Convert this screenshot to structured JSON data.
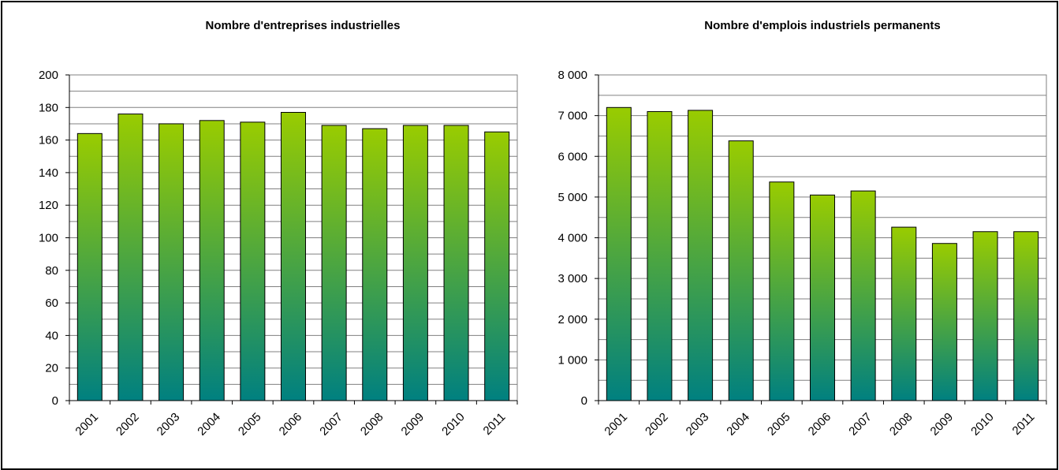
{
  "chart_data": [
    {
      "type": "bar",
      "title": "Nombre d'entreprises industrielles",
      "xlabel": "",
      "ylabel": "",
      "categories": [
        "2001",
        "2002",
        "2003",
        "2004",
        "2005",
        "2006",
        "2007",
        "2008",
        "2009",
        "2010",
        "2011"
      ],
      "values": [
        164,
        176,
        170,
        172,
        171,
        177,
        169,
        167,
        169,
        169,
        165
      ],
      "ylim": [
        0,
        200
      ],
      "yticks": [
        0,
        20,
        40,
        60,
        80,
        100,
        120,
        140,
        160,
        180,
        200
      ],
      "ytick_labels": [
        "0",
        "20",
        "40",
        "60",
        "80",
        "100",
        "120",
        "140",
        "160",
        "180",
        "200"
      ],
      "grid": true,
      "legend": "none",
      "colors": {
        "bar_top": "#99cc00",
        "bar_bottom": "#008080",
        "grid": "#808080"
      }
    },
    {
      "type": "bar",
      "title": "Nombre d'emplois industriels permanents",
      "xlabel": "",
      "ylabel": "",
      "categories": [
        "2001",
        "2002",
        "2003",
        "2004",
        "2005",
        "2006",
        "2007",
        "2008",
        "2009",
        "2010",
        "2011"
      ],
      "values": [
        7200,
        7100,
        7130,
        6380,
        5370,
        5050,
        5150,
        4260,
        3860,
        4150,
        4150
      ],
      "ylim": [
        0,
        8000
      ],
      "yticks": [
        0,
        1000,
        2000,
        3000,
        4000,
        5000,
        6000,
        7000,
        8000
      ],
      "ytick_labels": [
        "0",
        "1 000",
        "2 000",
        "3 000",
        "4 000",
        "5 000",
        "6 000",
        "7 000",
        "8 000"
      ],
      "grid": true,
      "legend": "none",
      "colors": {
        "bar_top": "#99cc00",
        "bar_bottom": "#008080",
        "grid": "#808080"
      }
    }
  ]
}
